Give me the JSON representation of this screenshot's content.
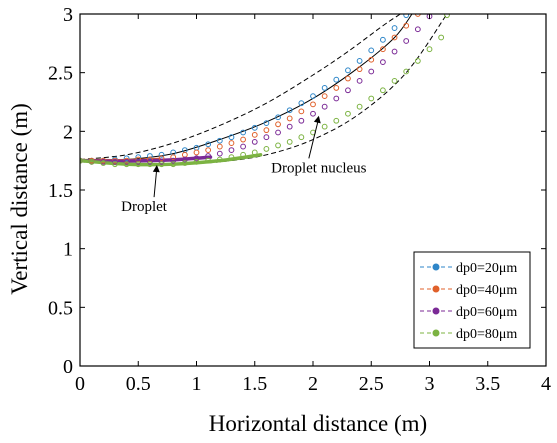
{
  "chart_data": {
    "type": "scatter",
    "xlabel": "Horizontal distance (m)",
    "ylabel": "Vertical distance (m)",
    "xlim": [
      0,
      4
    ],
    "ylim": [
      0,
      3
    ],
    "xticks": [
      "0",
      "0.5",
      "1",
      "1.5",
      "2",
      "2.5",
      "3",
      "3.5",
      "4"
    ],
    "yticks": [
      "0",
      "0.5",
      "1",
      "1.5",
      "2",
      "2.5",
      "3"
    ],
    "grid": false,
    "legend_position": "bottom-right",
    "series": [
      {
        "name": "dp0=20μm",
        "color": "#2e86c8",
        "marker": "open-circle",
        "x": [
          0.0,
          0.1,
          0.2,
          0.3,
          0.4,
          0.5,
          0.6,
          0.7,
          0.8,
          0.9,
          1.0,
          1.1,
          1.2,
          1.3,
          1.4,
          1.5,
          1.6,
          1.7,
          1.8,
          1.9,
          2.0,
          2.1,
          2.2,
          2.3,
          2.4,
          2.5,
          2.6,
          2.7,
          2.8
        ],
        "y": [
          1.75,
          1.75,
          1.75,
          1.76,
          1.77,
          1.78,
          1.79,
          1.8,
          1.82,
          1.84,
          1.86,
          1.89,
          1.92,
          1.95,
          1.99,
          2.03,
          2.07,
          2.12,
          2.18,
          2.24,
          2.3,
          2.37,
          2.44,
          2.52,
          2.6,
          2.69,
          2.78,
          2.88,
          2.99
        ]
      },
      {
        "name": "dp0=40μm",
        "color": "#e0612b",
        "marker": "open-circle",
        "x": [
          0.0,
          0.1,
          0.2,
          0.3,
          0.4,
          0.5,
          0.6,
          0.7,
          0.8,
          0.9,
          1.0,
          1.1,
          1.2,
          1.3,
          1.4,
          1.5,
          1.6,
          1.7,
          1.8,
          1.9,
          2.0,
          2.1,
          2.2,
          2.3,
          2.4,
          2.5,
          2.6,
          2.7,
          2.8,
          2.9
        ],
        "y": [
          1.75,
          1.75,
          1.75,
          1.75,
          1.75,
          1.76,
          1.76,
          1.77,
          1.78,
          1.8,
          1.82,
          1.84,
          1.87,
          1.9,
          1.93,
          1.97,
          2.01,
          2.06,
          2.11,
          2.17,
          2.23,
          2.3,
          2.37,
          2.45,
          2.53,
          2.61,
          2.7,
          2.8,
          2.9,
          3.0
        ]
      },
      {
        "name": "dp0=60μm",
        "color": "#7b2a96",
        "marker": "open-circle",
        "x": [
          0.0,
          0.1,
          0.2,
          0.3,
          0.4,
          0.5,
          0.6,
          0.7,
          0.8,
          0.9,
          1.0,
          1.1,
          1.2,
          1.3,
          1.4,
          1.5,
          1.6,
          1.7,
          1.8,
          1.9,
          2.0,
          2.1,
          2.2,
          2.3,
          2.4,
          2.5,
          2.6,
          2.7,
          2.8,
          2.9,
          3.0
        ],
        "y": [
          1.75,
          1.74,
          1.74,
          1.74,
          1.74,
          1.74,
          1.74,
          1.74,
          1.75,
          1.76,
          1.77,
          1.79,
          1.81,
          1.84,
          1.87,
          1.91,
          1.95,
          1.99,
          2.04,
          2.09,
          2.15,
          2.21,
          2.28,
          2.35,
          2.43,
          2.51,
          2.59,
          2.68,
          2.77,
          2.87,
          2.98
        ]
      },
      {
        "name": "dp0=80μm",
        "color": "#7cb342",
        "marker": "open-circle",
        "x": [
          0.0,
          0.1,
          0.2,
          0.3,
          0.4,
          0.5,
          0.6,
          0.7,
          0.8,
          0.9,
          1.0,
          1.1,
          1.2,
          1.3,
          1.4,
          1.5,
          1.6,
          1.7,
          1.8,
          1.9,
          2.0,
          2.1,
          2.2,
          2.3,
          2.4,
          2.5,
          2.6,
          2.7,
          2.8,
          2.9,
          3.0,
          3.1,
          3.15
        ],
        "y": [
          1.75,
          1.74,
          1.73,
          1.72,
          1.72,
          1.72,
          1.72,
          1.72,
          1.72,
          1.73,
          1.74,
          1.75,
          1.76,
          1.78,
          1.8,
          1.82,
          1.85,
          1.88,
          1.91,
          1.95,
          1.99,
          2.04,
          2.09,
          2.15,
          2.21,
          2.28,
          2.35,
          2.43,
          2.51,
          2.6,
          2.7,
          2.8,
          2.99
        ]
      }
    ],
    "droplet_segments": [
      {
        "color": "#e0612b",
        "x": [
          0.0,
          0.2,
          0.4,
          0.55,
          0.68
        ],
        "y": [
          1.75,
          1.75,
          1.75,
          1.755,
          1.76
        ]
      },
      {
        "color": "#7b2a96",
        "x": [
          0.0,
          0.3,
          0.6,
          0.85,
          1.12
        ],
        "y": [
          1.75,
          1.745,
          1.75,
          1.76,
          1.78
        ]
      },
      {
        "color": "#7cb342",
        "x": [
          0.0,
          0.4,
          0.8,
          1.2,
          1.55
        ],
        "y": [
          1.75,
          1.72,
          1.72,
          1.75,
          1.8
        ]
      }
    ],
    "envelope_curves": [
      {
        "style": "dashed",
        "x": [
          0.0,
          0.4,
          0.8,
          1.2,
          1.6,
          2.0,
          2.3,
          2.6,
          2.75
        ],
        "y": [
          1.76,
          1.8,
          1.9,
          2.05,
          2.24,
          2.48,
          2.68,
          2.9,
          3.0
        ]
      },
      {
        "style": "solid",
        "x": [
          0.0,
          0.4,
          0.8,
          1.2,
          1.6,
          2.0,
          2.4,
          2.7,
          2.85
        ],
        "y": [
          1.75,
          1.76,
          1.81,
          1.93,
          2.08,
          2.28,
          2.55,
          2.8,
          3.0
        ]
      },
      {
        "style": "dashed",
        "x": [
          0.0,
          0.4,
          0.8,
          1.2,
          1.6,
          2.0,
          2.4,
          2.8,
          3.15
        ],
        "y": [
          1.74,
          1.72,
          1.72,
          1.74,
          1.8,
          1.93,
          2.15,
          2.5,
          3.0
        ]
      }
    ],
    "annotations": [
      {
        "text": "Droplet",
        "x": 0.55,
        "y": 1.32,
        "arrow_to": [
          0.66,
          1.73
        ]
      },
      {
        "text": "Droplet nucleus",
        "x": 2.05,
        "y": 1.65,
        "arrow_to": [
          2.05,
          2.15
        ]
      }
    ]
  }
}
